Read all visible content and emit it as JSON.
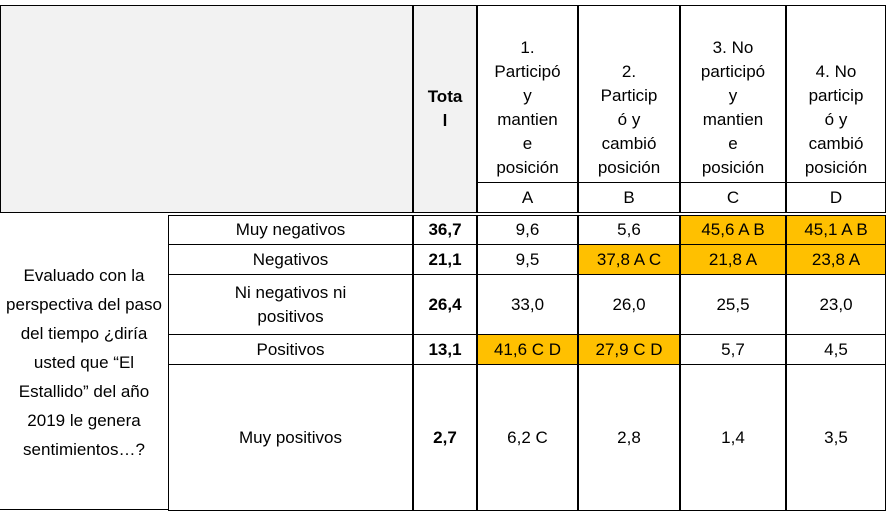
{
  "header": {
    "total": [
      "Tota",
      "l"
    ],
    "columns": [
      {
        "lines": [
          "1.",
          "Participó",
          "y",
          "mantien",
          "e",
          "posición"
        ],
        "letter": "A"
      },
      {
        "lines": [
          "2.",
          "Particip",
          "ó y",
          "cambió",
          "posición"
        ],
        "letter": "B"
      },
      {
        "lines": [
          "3. No",
          "participó",
          "y",
          "mantien",
          "e",
          "posición"
        ],
        "letter": "C"
      },
      {
        "lines": [
          "4. No",
          "particip",
          "ó y",
          "cambió",
          "posición"
        ],
        "letter": "D"
      }
    ]
  },
  "question": "Evaluado con la perspectiva del paso del tiempo ¿diría usted que “El Estallido” del año 2019 le genera sentimientos…?",
  "highlight_color": "#ffc000",
  "rows": [
    {
      "label": "Muy negativos",
      "total": "36,7",
      "cells": [
        {
          "text": "9,6"
        },
        {
          "text": "5,6"
        },
        {
          "text": "45,6 A B",
          "highlight": true
        },
        {
          "text": "45,1 A B",
          "highlight": true
        }
      ]
    },
    {
      "label": "Negativos",
      "total": "21,1",
      "cells": [
        {
          "text": "9,5"
        },
        {
          "text": "37,8 A C",
          "highlight": true
        },
        {
          "text": "21,8 A",
          "highlight": true
        },
        {
          "text": "23,8 A",
          "highlight": true
        }
      ]
    },
    {
      "label": "Ni negativos ni positivos",
      "total": "26,4",
      "cells": [
        {
          "text": "33,0"
        },
        {
          "text": "26,0"
        },
        {
          "text": "25,5"
        },
        {
          "text": "23,0"
        }
      ]
    },
    {
      "label": "Positivos",
      "total": "13,1",
      "cells": [
        {
          "text": "41,6 C D",
          "highlight": true
        },
        {
          "text": "27,9 C D",
          "highlight": true
        },
        {
          "text": "5,7"
        },
        {
          "text": "4,5"
        }
      ]
    },
    {
      "label": "Muy positivos",
      "total": "2,7",
      "cells": [
        {
          "text": "6,2 C"
        },
        {
          "text": "2,8"
        },
        {
          "text": "1,4"
        },
        {
          "text": "3,5"
        }
      ]
    }
  ]
}
